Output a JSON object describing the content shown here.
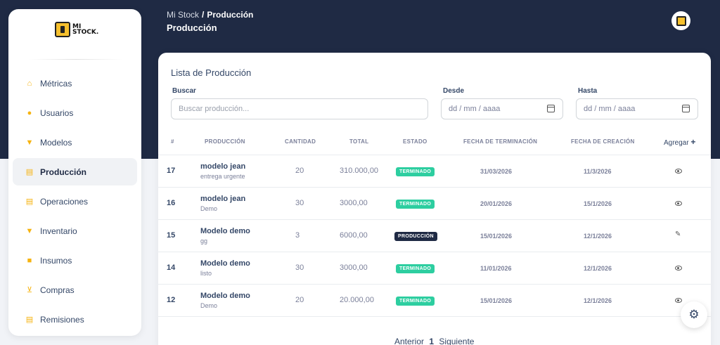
{
  "app": {
    "logo_text_line1": "MI",
    "logo_text_line2": "STOCK."
  },
  "sidebar": {
    "items": [
      {
        "label": "Métricas",
        "icon": "home-icon"
      },
      {
        "label": "Usuarios",
        "icon": "users-icon"
      },
      {
        "label": "Modelos",
        "icon": "shirt-icon"
      },
      {
        "label": "Producción",
        "icon": "document-icon",
        "active": true
      },
      {
        "label": "Operaciones",
        "icon": "document-icon"
      },
      {
        "label": "Inventario",
        "icon": "shirt-icon"
      },
      {
        "label": "Insumos",
        "icon": "box-icon"
      },
      {
        "label": "Compras",
        "icon": "cart-icon"
      },
      {
        "label": "Remisiones",
        "icon": "document-icon"
      }
    ]
  },
  "header": {
    "breadcrumb_root": "Mi Stock",
    "breadcrumb_sep": "/",
    "breadcrumb_current": "Producción",
    "title": "Producción"
  },
  "card": {
    "title": "Lista de Producción",
    "search_label": "Buscar",
    "search_placeholder": "Buscar producción...",
    "from_label": "Desde",
    "from_placeholder": "dd / mm / aaaa",
    "to_label": "Hasta",
    "to_placeholder": "dd / mm / aaaa"
  },
  "table": {
    "headers": [
      "#",
      "Producción",
      "Cantidad",
      "Total",
      "Estado",
      "Fecha de terminación",
      "Fecha de creación"
    ],
    "add_label": "Agregar",
    "rows": [
      {
        "id": "17",
        "name": "modelo jean",
        "sub": "entrega urgente",
        "qty": "20",
        "total": "310.000,00",
        "status": "TERMINADO",
        "status_kind": "terminado",
        "end": "31/03/2026",
        "created": "11/3/2026",
        "action": "eye-icon"
      },
      {
        "id": "16",
        "name": "modelo jean",
        "sub": "Demo",
        "qty": "30",
        "total": "3000,00",
        "status": "TERMINADO",
        "status_kind": "terminado",
        "end": "20/01/2026",
        "created": "15/1/2026",
        "action": "eye-icon"
      },
      {
        "id": "15",
        "name": "Modelo demo",
        "sub": "gg",
        "qty": "3",
        "total": "6000,00",
        "status": "PRODUCCIÓN",
        "status_kind": "produccion",
        "end": "15/01/2026",
        "created": "12/1/2026",
        "action": "pencil-icon"
      },
      {
        "id": "14",
        "name": "Modelo demo",
        "sub": "listo",
        "qty": "30",
        "total": "3000,00",
        "status": "TERMINADO",
        "status_kind": "terminado",
        "end": "11/01/2026",
        "created": "12/1/2026",
        "action": "eye-icon"
      },
      {
        "id": "12",
        "name": "Modelo demo",
        "sub": "Demo",
        "qty": "20",
        "total": "20.000,00",
        "status": "TERMINADO",
        "status_kind": "terminado",
        "end": "15/01/2026",
        "created": "12/1/2026",
        "action": "eye-icon"
      }
    ]
  },
  "pagination": {
    "prev": "Anterior",
    "current": "1",
    "next": "Siguiente"
  },
  "colors": {
    "header_bg": "#1f2a44",
    "accent": "#f6b30f",
    "status_terminado": "#2dcea0",
    "status_produccion": "#1f2a44"
  }
}
